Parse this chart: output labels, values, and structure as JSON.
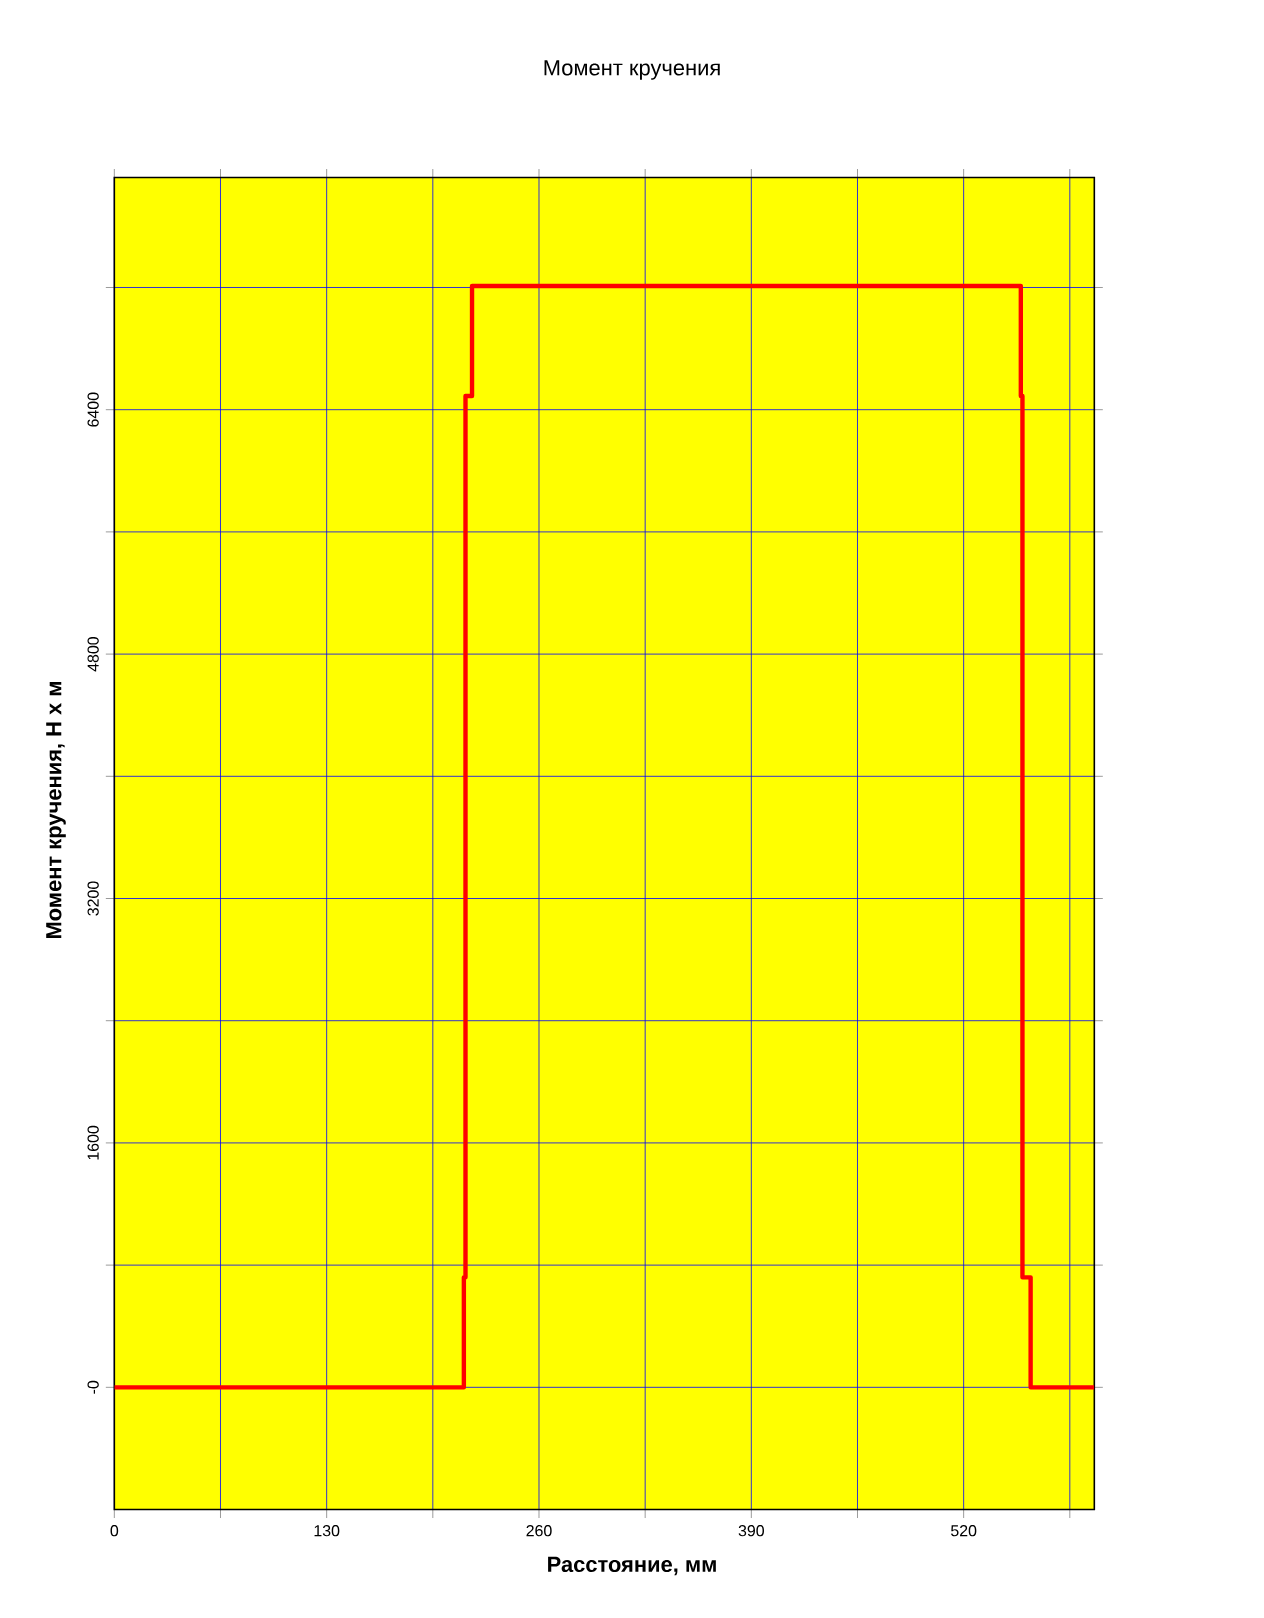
{
  "chart_data": {
    "type": "line",
    "title": "Момент кручения",
    "xlabel": "Расстояние, мм",
    "ylabel": "Момент кручения, Н х м",
    "x": [
      0,
      214,
      214,
      215,
      215,
      219,
      219,
      555,
      555,
      556,
      556,
      561,
      561,
      600
    ],
    "series": [
      {
        "color": "#ff0000",
        "values": [
          0,
          0,
          720,
          720,
          6490,
          6490,
          7210,
          7210,
          6490,
          6490,
          720,
          720,
          0,
          0
        ]
      }
    ],
    "xlim": [
      0,
      600
    ],
    "ylim": [
      -800,
      7920
    ],
    "xticks": [
      0,
      {
        "value": 65,
        "label": null
      },
      130,
      {
        "value": 195,
        "label": null
      },
      260,
      {
        "value": 325,
        "label": null
      },
      390,
      {
        "value": 455,
        "label": null
      },
      520,
      {
        "value": 585,
        "label": null
      }
    ],
    "yticks": [
      {
        "value": 0,
        "label": "-0"
      },
      {
        "value": 800,
        "label": null
      },
      1600,
      {
        "value": 2400,
        "label": null
      },
      3200,
      {
        "value": 4000,
        "label": null
      },
      4800,
      {
        "value": 5600,
        "label": null
      },
      6400,
      {
        "value": 7200,
        "label": null
      }
    ],
    "grid": true,
    "marker": "none",
    "line_style": "solid"
  }
}
